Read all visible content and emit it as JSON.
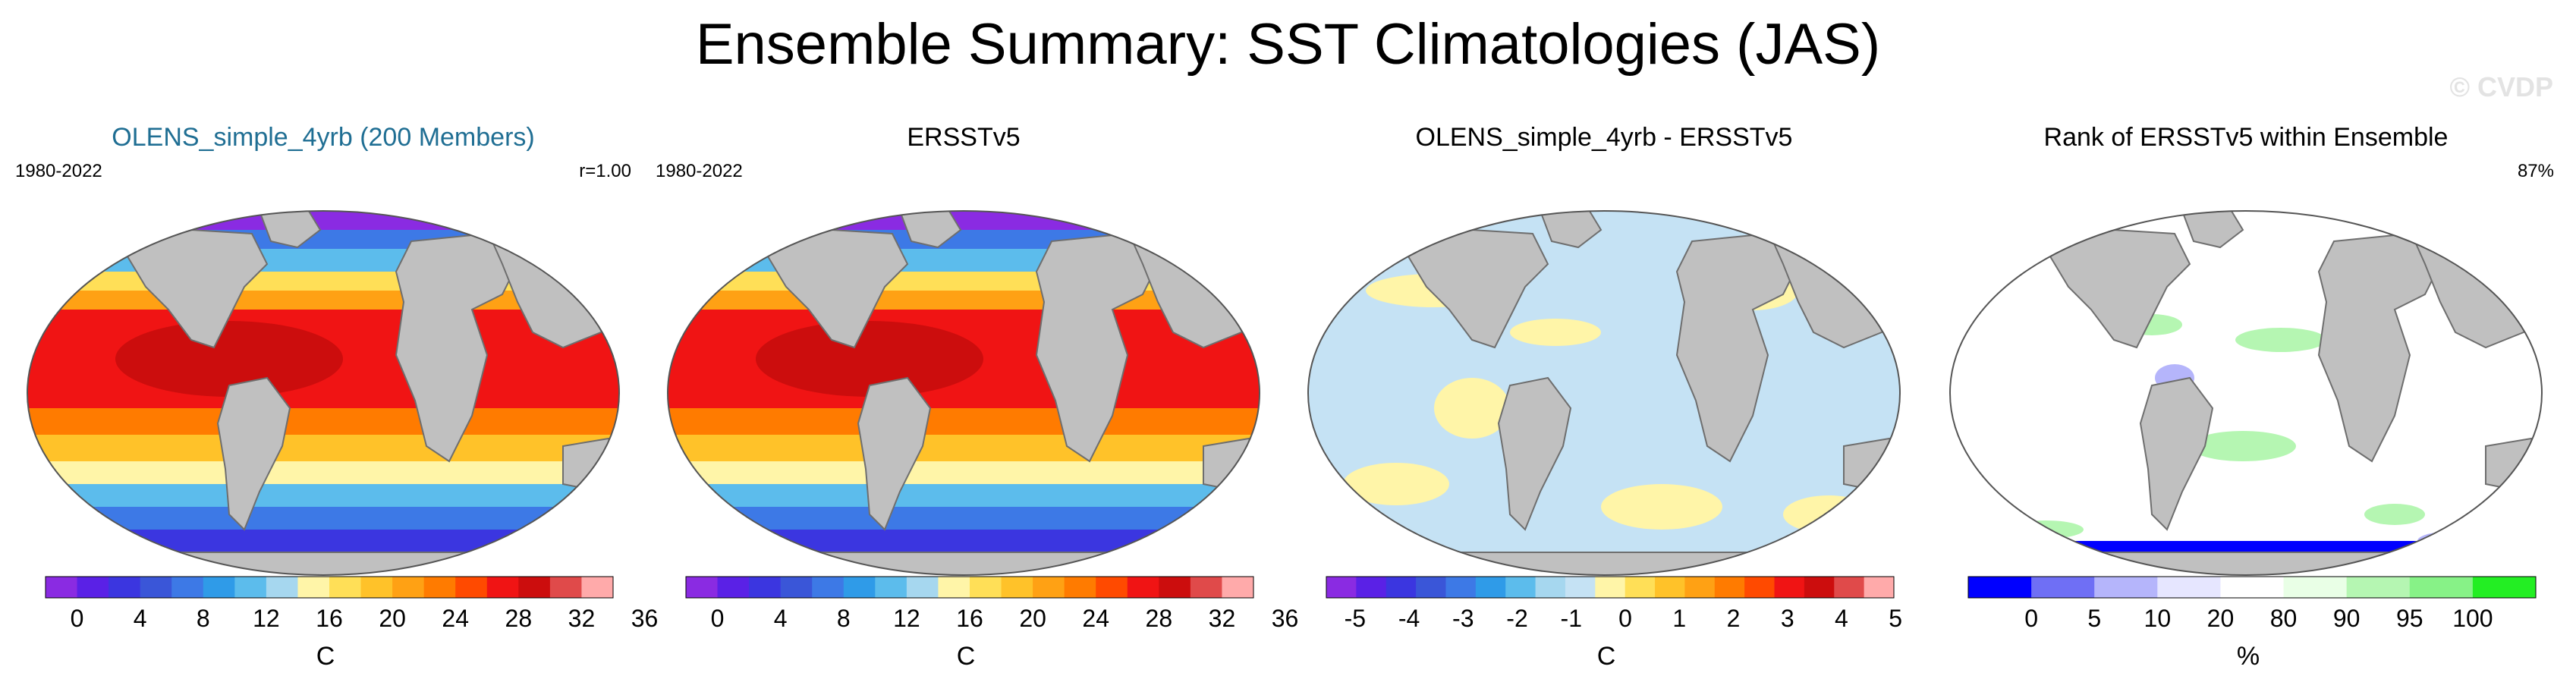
{
  "title": "Ensemble Summary: SST Climatologies (JAS)",
  "watermark": "© CVDP",
  "colors": {
    "land": "#c0c0c0",
    "coast": "#6e6e6e",
    "title_blue": "#1f6e93",
    "temp_scale": [
      "#8a2be2",
      "#5a21e6",
      "#3b36e0",
      "#3a56d8",
      "#3d79e6",
      "#2f9be8",
      "#5cbcec",
      "#a6d7ef",
      "#fff5a8",
      "#ffdf57",
      "#ffc229",
      "#ffa114",
      "#ff7b00",
      "#ff4a00",
      "#f01414",
      "#cc0d0d",
      "#e04a4a",
      "#ffaaaa"
    ],
    "diff_scale": [
      "#8a2be2",
      "#5a21e6",
      "#3b36e0",
      "#3a56d8",
      "#3d79e6",
      "#2f9be8",
      "#5cbcec",
      "#a6d7ef",
      "#c5e2f4",
      "#fff5a8",
      "#ffdf57",
      "#ffc229",
      "#ffa114",
      "#ff7b00",
      "#ff4a00",
      "#f01414",
      "#cc0d0d",
      "#e04a4a",
      "#ffaaaa"
    ],
    "rank_scale": [
      "#0000ff",
      "#6f6ff5",
      "#b5b5fb",
      "#e6e6ff",
      "#ffffff",
      "#e9ffe6",
      "#b5f6b2",
      "#87f287",
      "#23ee23"
    ]
  },
  "panels": [
    {
      "title": "OLENS_simple_4yrb (200 Members)",
      "title_color": "#1f6e93",
      "left": "1980-2022",
      "right": "r=1.00",
      "kind": "sst",
      "colorbar": {
        "labels": [
          "0",
          "4",
          "8",
          "12",
          "16",
          "20",
          "24",
          "28",
          "32",
          "36"
        ],
        "unit": "C",
        "scale": "temp_scale"
      }
    },
    {
      "title": "ERSSTv5",
      "title_color": "#000000",
      "left": "1980-2022",
      "right": "",
      "kind": "sst",
      "colorbar": {
        "labels": [
          "0",
          "4",
          "8",
          "12",
          "16",
          "20",
          "24",
          "28",
          "32",
          "36"
        ],
        "unit": "C",
        "scale": "temp_scale"
      }
    },
    {
      "title": "OLENS_simple_4yrb - ERSSTv5",
      "title_color": "#000000",
      "left": "",
      "right": "",
      "kind": "diff",
      "colorbar": {
        "labels": [
          "-5",
          "-4",
          "-3",
          "-2",
          "-1",
          "0",
          "1",
          "2",
          "3",
          "4",
          "5"
        ],
        "unit": "C",
        "scale": "diff_scale"
      }
    },
    {
      "title": "Rank of ERSSTv5 within Ensemble",
      "title_color": "#000000",
      "left": "",
      "right": "87%",
      "kind": "rank",
      "colorbar": {
        "labels": [
          "0",
          "5",
          "10",
          "20",
          "80",
          "90",
          "95",
          "100"
        ],
        "unit": "%",
        "scale": "rank_scale"
      }
    }
  ],
  "chart_data": [
    {
      "type": "heatmap",
      "title": "OLENS_simple_4yrb (200 Members)",
      "subtitle_left": "1980-2022",
      "subtitle_right": "r=1.00",
      "colorbar_levels": [
        0,
        2,
        4,
        6,
        8,
        10,
        12,
        14,
        16,
        18,
        20,
        22,
        24,
        26,
        28,
        30,
        32,
        34,
        36
      ],
      "unit": "C"
    },
    {
      "type": "heatmap",
      "title": "ERSSTv5",
      "subtitle_left": "1980-2022",
      "colorbar_levels": [
        0,
        2,
        4,
        6,
        8,
        10,
        12,
        14,
        16,
        18,
        20,
        22,
        24,
        26,
        28,
        30,
        32,
        34,
        36
      ],
      "unit": "C"
    },
    {
      "type": "heatmap",
      "title": "OLENS_simple_4yrb - ERSSTv5",
      "colorbar_levels": [
        -5,
        -4,
        -3,
        -2,
        -1,
        0,
        1,
        2,
        3,
        4,
        5
      ],
      "unit": "C"
    },
    {
      "type": "heatmap",
      "title": "Rank of ERSSTv5 within Ensemble",
      "subtitle_right": "87%",
      "colorbar_levels": [
        0,
        5,
        10,
        20,
        80,
        90,
        95,
        100
      ],
      "unit": "%"
    }
  ]
}
